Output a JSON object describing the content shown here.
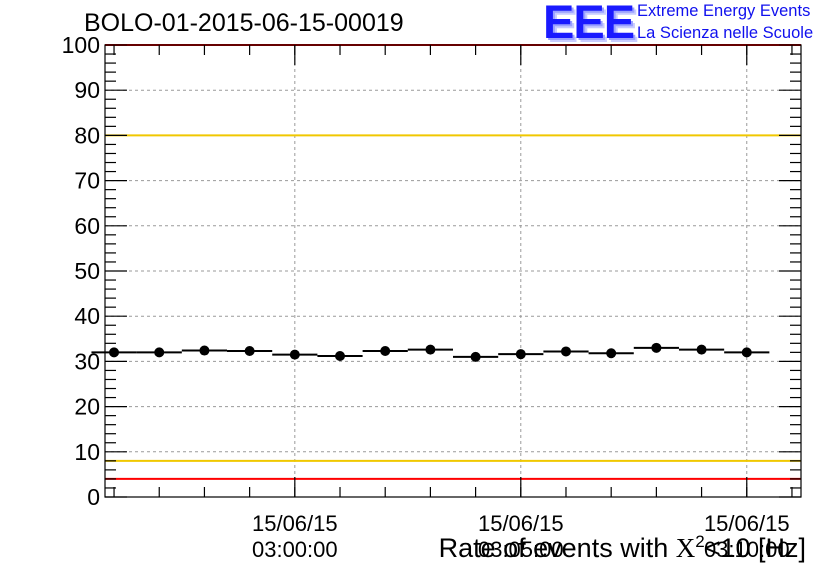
{
  "header": {
    "run_title": "BOLO-01-2015-06-15-00019",
    "logo_mark": "EEE",
    "logo_line1": "Extreme Energy Events",
    "logo_line2": "La Scienza nelle Scuole"
  },
  "colors": {
    "data": "#000000",
    "warning_line": "#f0c800",
    "alarm_line": "#ff0000",
    "grid": "#9a9a9a",
    "logo": "#1a1aff"
  },
  "chart_data": {
    "type": "scatter",
    "title": "BOLO-01-2015-06-15-00019",
    "xlabel": "Rate of events with X²<10 [Hz]",
    "xlabel_parts": {
      "pre": "Rate of events with ",
      "sym": "X",
      "sup": "2",
      "post": "<10 [Hz]"
    },
    "ylim": [
      0,
      100
    ],
    "yticks": [
      "0",
      "10",
      "20",
      "30",
      "40",
      "50",
      "60",
      "70",
      "80",
      "90",
      "100"
    ],
    "xlim_minutes": [
      -4.2,
      11.2
    ],
    "xticks": [
      {
        "minute": 0,
        "date": "15/06/15",
        "time": "03:00:00"
      },
      {
        "minute": 5,
        "date": "15/06/15",
        "time": "03:05:00"
      },
      {
        "minute": 10,
        "date": "15/06/15",
        "time": "03:10:00"
      }
    ],
    "grid": true,
    "bin_width_minutes": 1,
    "series": [
      {
        "x": [
          -4,
          -3,
          -2,
          -1,
          0,
          1,
          2,
          3,
          4,
          5,
          6,
          7,
          8,
          9,
          10
        ],
        "y": [
          32.0,
          32.0,
          32.4,
          32.3,
          31.5,
          31.2,
          32.3,
          32.6,
          31.0,
          31.6,
          32.2,
          31.8,
          33.0,
          32.6,
          32.0
        ]
      }
    ],
    "reference_lines": [
      {
        "y": 80,
        "color": "#f0c800"
      },
      {
        "y": 8,
        "color": "#f0c800"
      },
      {
        "y": 4,
        "color": "#ff0000"
      },
      {
        "y": 100,
        "color": "#ff0000"
      }
    ]
  }
}
